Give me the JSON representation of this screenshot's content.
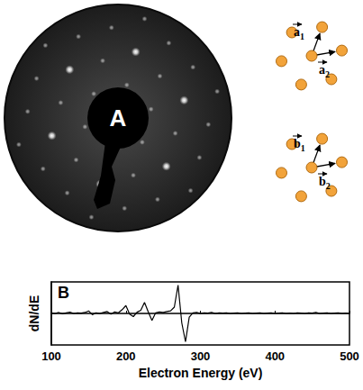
{
  "panel_a": {
    "label": "A",
    "lattices": [
      {
        "vectors": [
          {
            "symbol": "a",
            "subscript": "1"
          },
          {
            "symbol": "a",
            "subscript": "2"
          }
        ]
      },
      {
        "vectors": [
          {
            "symbol": "b",
            "subscript": "1"
          },
          {
            "symbol": "b",
            "subscript": "2"
          }
        ]
      }
    ]
  },
  "chart_data": {
    "label": "B",
    "type": "line",
    "color": "#000000",
    "x_label": "Electron Energy (eV)",
    "y_label": "dN/dE",
    "x": [
      100,
      105,
      110,
      115,
      120,
      125,
      130,
      135,
      140,
      145,
      150,
      155,
      160,
      165,
      170,
      175,
      180,
      185,
      190,
      195,
      200,
      205,
      210,
      215,
      220,
      225,
      230,
      235,
      240,
      245,
      250,
      255,
      260,
      265,
      270,
      275,
      280,
      285,
      290,
      295,
      300,
      305,
      310,
      315,
      320,
      325,
      330,
      335,
      340,
      345,
      350,
      355,
      360,
      365,
      370,
      375,
      380,
      385,
      390,
      395,
      400,
      405,
      410,
      415,
      420,
      425,
      430,
      435,
      440,
      445,
      450,
      455,
      460,
      465,
      470,
      475,
      480,
      485,
      490,
      495,
      500
    ],
    "values": [
      0.02,
      0.0,
      0.03,
      -0.01,
      0.02,
      0.04,
      0.0,
      0.02,
      0.01,
      0.03,
      0.08,
      -0.04,
      0.02,
      0.0,
      0.03,
      0.06,
      -0.02,
      0.05,
      0.02,
      0.12,
      0.25,
      -0.02,
      -0.1,
      0.04,
      0.1,
      0.35,
      0.05,
      -0.22,
      0.02,
      0.05,
      0.03,
      0.06,
      0.08,
      0.2,
      0.9,
      -0.3,
      -0.9,
      -0.12,
      0.02,
      0.03,
      0.0,
      0.02,
      0.01,
      0.03,
      0.0,
      0.02,
      0.01,
      0.02,
      0.0,
      0.01,
      0.02,
      0.0,
      0.01,
      0.02,
      0.0,
      0.01,
      0.02,
      0.0,
      0.01,
      0.02,
      0.0,
      0.01,
      0.02,
      0.0,
      0.01,
      0.0,
      0.02,
      0.01,
      0.0,
      0.02,
      0.01,
      0.03,
      0.0,
      0.01,
      0.02,
      0.0,
      0.01,
      0.02,
      0.0,
      0.01,
      0.0
    ],
    "xlim": [
      100,
      500
    ],
    "xticks": [
      100,
      200,
      300,
      400,
      500
    ],
    "ylim": [
      -1,
      1
    ],
    "tick_labels": "x",
    "grid": false
  }
}
